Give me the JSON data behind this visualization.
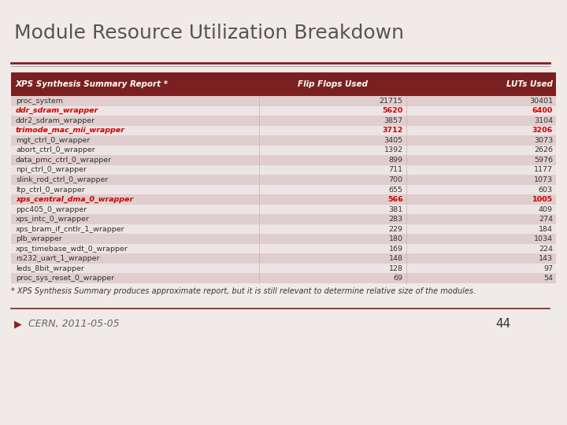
{
  "title": "Module Resource Utilization Breakdown",
  "header": [
    "XPS Synthesis Summary Report *",
    "Flip Flops Used",
    "LUTs Used"
  ],
  "rows": [
    [
      "proc_system",
      "21715",
      "30401",
      false
    ],
    [
      "ddr_sdram_wrapper",
      "5620",
      "6400",
      true
    ],
    [
      "ddr2_sdram_wrapper",
      "3857",
      "3104",
      false
    ],
    [
      "trimode_mac_mii_wrapper",
      "3712",
      "3206",
      true
    ],
    [
      "mgt_ctrl_0_wrapper",
      "3405",
      "3073",
      false
    ],
    [
      "abort_ctrl_0_wrapper",
      "1392",
      "2626",
      false
    ],
    [
      "data_pmc_ctrl_0_wrapper",
      "899",
      "5976",
      false
    ],
    [
      "npi_ctrl_0_wrapper",
      "711",
      "1177",
      false
    ],
    [
      "slink_rod_ctrl_0_wrapper",
      "700",
      "1073",
      false
    ],
    [
      "ltp_ctrl_0_wrapper",
      "655",
      "603",
      false
    ],
    [
      "xps_central_dma_0_wrapper",
      "566",
      "1005",
      true
    ],
    [
      "ppc405_0_wrapper",
      "381",
      "409",
      false
    ],
    [
      "xps_intc_0_wrapper",
      "283",
      "274",
      false
    ],
    [
      "xps_bram_if_cntlr_1_wrapper",
      "229",
      "184",
      false
    ],
    [
      "plb_wrapper",
      "180",
      "1034",
      false
    ],
    [
      "xps_timebase_wdt_0_wrapper",
      "169",
      "224",
      false
    ],
    [
      "rs232_uart_1_wrapper",
      "148",
      "143",
      false
    ],
    [
      "leds_8bit_wrapper",
      "128",
      "97",
      false
    ],
    [
      "proc_sys_reset_0_wrapper",
      "69",
      "54",
      false
    ]
  ],
  "footer_note": "* XPS Synthesis Summary produces approximate report, but it is still relevant to determine relative size of the modules.",
  "footer_date": "CERN, 2011-05-05",
  "footer_page": "44",
  "bg_color": "#f0ebe8",
  "header_bg": "#7B2020",
  "header_fg": "#ffffff",
  "row_odd_bg": "#e0cece",
  "row_even_bg": "#ede5e5",
  "highlight_fg": "#cc0000",
  "normal_fg": "#333333",
  "title_color": "#555555",
  "separator_color_dark": "#7B2020",
  "separator_color_light": "#c0a0a0"
}
